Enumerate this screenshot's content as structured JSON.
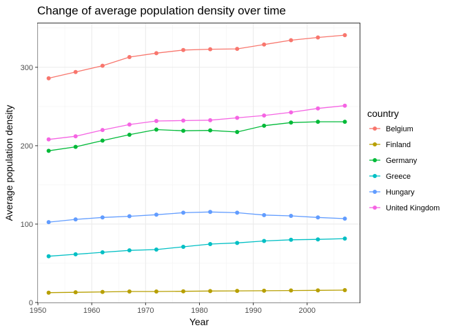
{
  "chart_data": {
    "type": "line",
    "title": "Change of average population density over time",
    "xlabel": "Year",
    "ylabel": "Average population density",
    "xlim": [
      1950,
      2009.75
    ],
    "ylim": [
      0,
      356
    ],
    "x_ticks": [
      1950,
      1960,
      1970,
      1980,
      1990,
      2000
    ],
    "y_ticks": [
      0,
      100,
      200,
      300
    ],
    "grid": true,
    "legend": {
      "title": "country",
      "position": "right"
    },
    "x": [
      1952,
      1957,
      1962,
      1967,
      1972,
      1977,
      1982,
      1987,
      1992,
      1997,
      2002,
      2007
    ],
    "series": [
      {
        "name": "Belgium",
        "color": "#F8766D",
        "values": [
          286,
          294,
          302,
          313,
          318,
          322,
          323,
          323.5,
          329,
          334.5,
          338,
          341
        ]
      },
      {
        "name": "Finland",
        "color": "#B79F00",
        "values": [
          12.5,
          13,
          13.5,
          14,
          14,
          14.3,
          14.6,
          14.8,
          15,
          15.3,
          15.5,
          15.8
        ]
      },
      {
        "name": "Germany",
        "color": "#00BA38",
        "values": [
          193.5,
          198.5,
          206.5,
          214,
          220.5,
          219,
          219.5,
          217.5,
          225.5,
          229.5,
          230.5,
          230.5
        ]
      },
      {
        "name": "Greece",
        "color": "#00BFC4",
        "values": [
          59,
          61.5,
          64,
          66.5,
          67.5,
          71,
          74.5,
          76,
          78.5,
          80,
          80.5,
          81.5
        ]
      },
      {
        "name": "Hungary",
        "color": "#619CFF",
        "values": [
          102.5,
          106,
          108.5,
          110,
          112,
          114.5,
          115.5,
          114.5,
          111.5,
          110.5,
          108.5,
          107
        ]
      },
      {
        "name": "United Kingdom",
        "color": "#F564E3",
        "values": [
          208,
          212,
          220,
          227,
          231.5,
          232,
          232.5,
          235.5,
          238.5,
          242.5,
          247.5,
          251
        ]
      }
    ]
  }
}
